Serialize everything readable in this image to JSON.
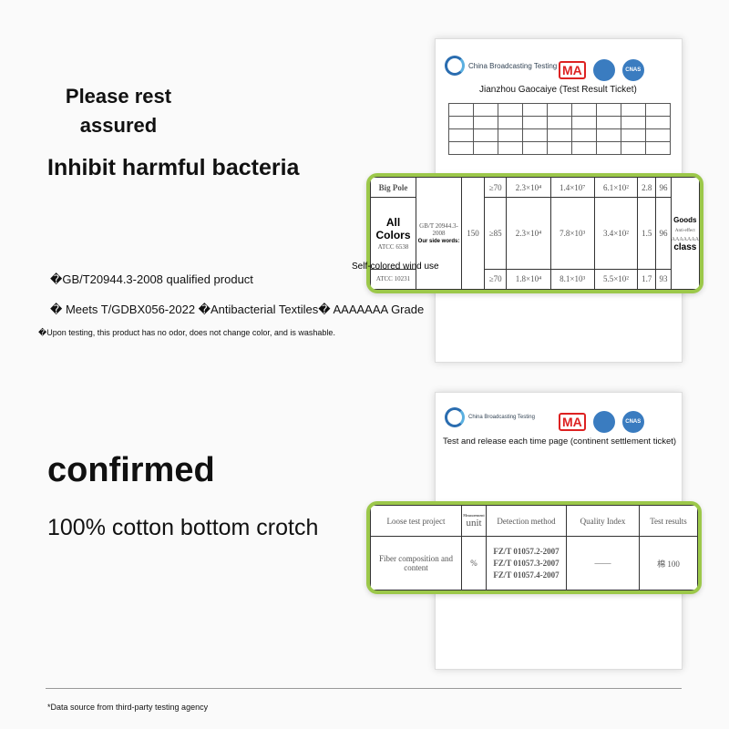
{
  "section1": {
    "headline1": "Please rest assured",
    "headline2": "Inhibit harmful bacteria",
    "bullet1": "�GB/T20944.3-2008 qualified product",
    "bullet2": "� Meets T/GDBX056-2022 �Antibacterial Textiles� AAAAAAA Grade",
    "bullet3": "�Upon testing, this product has no odor, does not change color, and is washable.",
    "report": {
      "agency": "China Broadcasting Testing",
      "title": "Jianzhou Gaocaiye (Test Result Ticket)",
      "ma": "MA",
      "cnas": "CNAS"
    },
    "table": {
      "label_big_pole": "Big Pole",
      "label_all_colors": "All Colors",
      "label_side_words": "Our side words:",
      "label_self_colored": "Self-colored wind use",
      "strain2": "ATCC 6538",
      "strain3": "ATCC 10231",
      "method": "GB/T 20944.3-2008",
      "value150": "150",
      "rows": [
        [
          "≥70",
          "2.3×10⁴",
          "1.4×10⁷",
          "6.1×10²",
          "2.8",
          "96"
        ],
        [
          "≥85",
          "2.3×10⁴",
          "7.8×10³",
          "3.4×10²",
          "1.5",
          "96"
        ],
        [
          "≥70",
          "1.8×10⁴",
          "8.1×10³",
          "5.5×10²",
          "1.7",
          "93"
        ]
      ],
      "goods": "Goods",
      "anti": "Anti-effect",
      "grade": "AAAAAAA",
      "class": "class"
    }
  },
  "section2": {
    "headline1": "confirmed",
    "headline2": "100% cotton bottom crotch",
    "report": {
      "agency": "China Broadcasting Testing",
      "title": "Test and release each time page (continent settlement ticket)",
      "ma": "MA",
      "cnas": "CNAS"
    },
    "table": {
      "headers": [
        "Loose test project",
        "Measurement",
        "unit",
        "Detection method",
        "Quality Index",
        "Test results"
      ],
      "item": "Fiber composition and content",
      "unit": "%",
      "methods": [
        "FZ/T 01057.2-2007",
        "FZ/T 01057.3-2007",
        "FZ/T 01057.4-2007"
      ],
      "index": "——",
      "result": "棉 100"
    }
  },
  "footer": "*Data source from third-party testing agency",
  "colors": {
    "accent": "#9cc84a"
  }
}
